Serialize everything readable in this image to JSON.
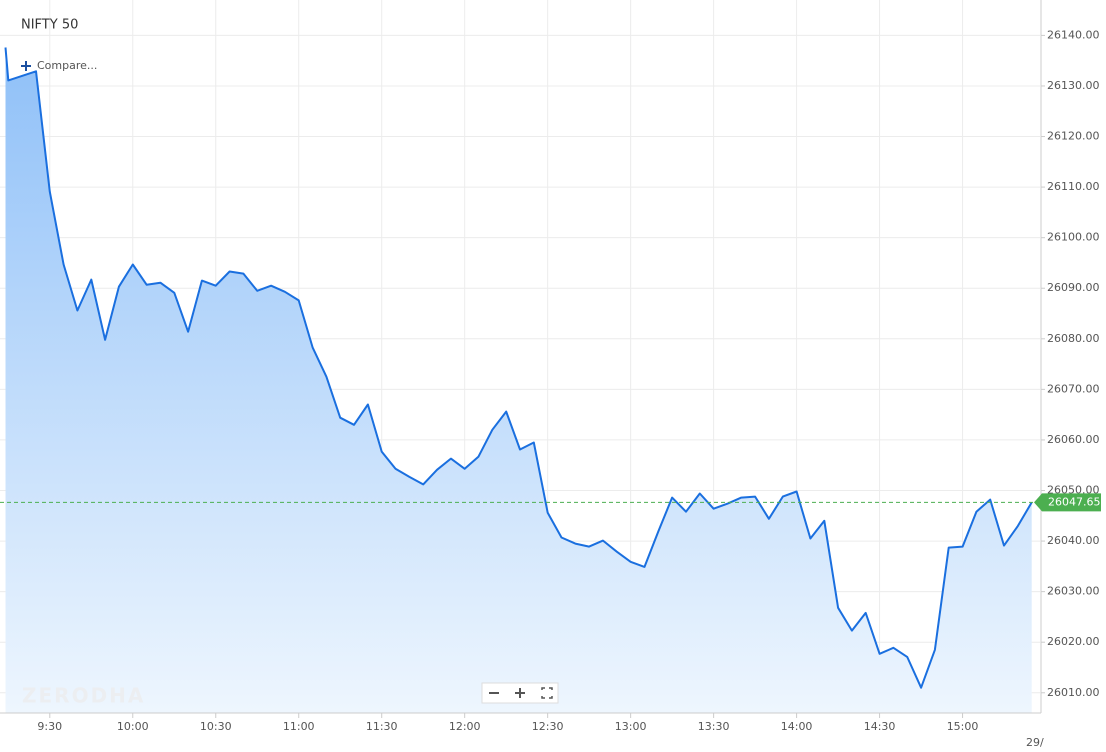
{
  "chart_data": {
    "type": "line",
    "title": "NIFTY 50",
    "compare_label": "Compare...",
    "watermark": "ZERODHA",
    "cut_label": "29/",
    "x": [
      "9:14",
      "9:15",
      "9:25",
      "9:30",
      "9:35",
      "9:40",
      "9:45",
      "9:50",
      "9:55",
      "10:00",
      "10:05",
      "10:10",
      "10:15",
      "10:20",
      "10:25",
      "10:30",
      "10:35",
      "10:40",
      "10:45",
      "10:50",
      "10:55",
      "11:00",
      "11:05",
      "11:10",
      "11:15",
      "11:20",
      "11:25",
      "11:30",
      "11:35",
      "11:40",
      "11:45",
      "11:50",
      "11:55",
      "12:00",
      "12:05",
      "12:10",
      "12:15",
      "12:20",
      "12:25",
      "12:30",
      "12:35",
      "12:40",
      "12:45",
      "12:50",
      "12:55",
      "13:00",
      "13:05",
      "13:10",
      "13:15",
      "13:20",
      "13:25",
      "13:30",
      "13:35",
      "13:40",
      "13:45",
      "13:50",
      "13:55",
      "14:00",
      "14:05",
      "14:10",
      "14:15",
      "14:20",
      "14:25",
      "14:30",
      "14:35",
      "14:40",
      "14:45",
      "14:50",
      "14:55",
      "15:00",
      "15:05",
      "15:10",
      "15:15",
      "15:20",
      "15:25"
    ],
    "series": [
      {
        "name": "NIFTY 50",
        "color": "#1a6fdf",
        "values": [
          26137.6,
          26131.1,
          26132.9,
          26109.1,
          26094.7,
          26085.6,
          26091.7,
          26079.8,
          26090.3,
          26094.7,
          26090.7,
          26091.1,
          26089.1,
          26081.4,
          26091.5,
          26090.5,
          26093.3,
          26092.9,
          26089.5,
          26090.5,
          26089.3,
          26087.6,
          26078.3,
          26072.5,
          26064.4,
          26063.0,
          26067.0,
          26057.7,
          26054.3,
          26052.7,
          26051.2,
          26054.1,
          26056.3,
          26054.3,
          26056.7,
          26062.0,
          26065.6,
          26058.1,
          26059.5,
          26045.6,
          26040.7,
          26039.5,
          26038.9,
          26040.1,
          26037.9,
          26035.9,
          26034.9,
          26041.9,
          26048.6,
          26045.8,
          26049.4,
          26046.4,
          26047.4,
          26048.6,
          26048.8,
          26044.4,
          26048.8,
          26049.8,
          26040.5,
          26044.0,
          26026.8,
          26022.3,
          26025.8,
          26017.7,
          26018.9,
          26017.1,
          26011.0,
          26018.5,
          26038.7,
          26038.9,
          26045.8,
          26048.2,
          26039.1,
          26043.0,
          26047.65
        ]
      }
    ],
    "last_price": 26047.65,
    "last_price_color": "#4caf50",
    "xlim": [
      "9:12",
      "15:28"
    ],
    "xticks": [
      "9:30",
      "10:00",
      "10:30",
      "11:00",
      "11:30",
      "12:00",
      "12:30",
      "13:00",
      "13:30",
      "14:00",
      "14:30",
      "15:00"
    ],
    "ylim": [
      26006,
      26147
    ],
    "yticks": [
      {
        "value": 26010,
        "label": "26010.00"
      },
      {
        "value": 26020,
        "label": "26020.00"
      },
      {
        "value": 26030,
        "label": "26030.00"
      },
      {
        "value": 26040,
        "label": "26040.00"
      },
      {
        "value": 26050,
        "label": "26050.00"
      },
      {
        "value": 26060,
        "label": "26060.00"
      },
      {
        "value": 26070,
        "label": "26070.00"
      },
      {
        "value": 26080,
        "label": "26080.00"
      },
      {
        "value": 26090,
        "label": "26090.00"
      },
      {
        "value": 26100,
        "label": "26100.00"
      },
      {
        "value": 26110,
        "label": "26110.00"
      },
      {
        "value": 26120,
        "label": "26120.00"
      },
      {
        "value": 26130,
        "label": "26130.00"
      },
      {
        "value": 26140,
        "label": "26140.00"
      }
    ],
    "grid": true
  }
}
